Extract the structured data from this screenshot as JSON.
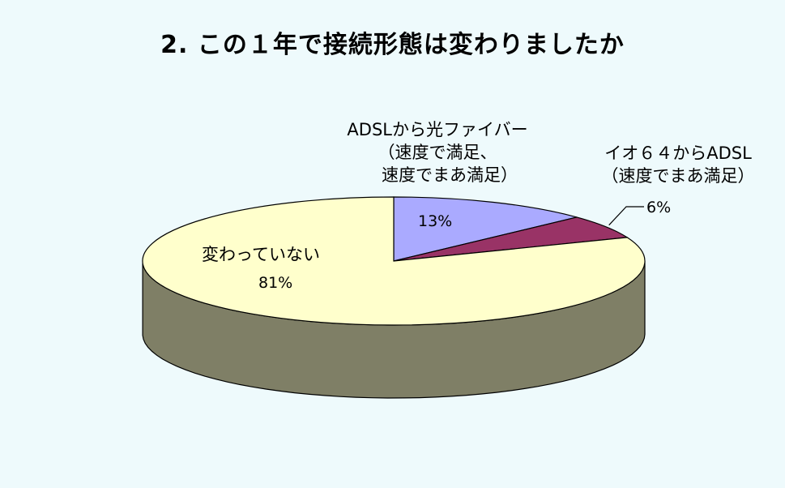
{
  "chart_data": {
    "type": "pie",
    "style": "3d",
    "title": "2. この１年で接続形態は変わりましたか",
    "legend": "none",
    "slices": [
      {
        "name_lines": [
          "ADSLから光ファイバー",
          "（速度で満足、",
          "速度でまあ満足）"
        ],
        "value": 13,
        "label": "13%",
        "color": "#aaaaff"
      },
      {
        "name_lines": [
          "イオ６４からADSL",
          "（速度でまあ満足）"
        ],
        "value": 6,
        "label": "6%",
        "color": "#993366"
      },
      {
        "name_lines": [
          "変わっていない"
        ],
        "value": 81,
        "label": "81%",
        "color": "#ffffcc"
      }
    ],
    "side_colors": {
      "#aaaaff": "#55557f",
      "#993366": "#4c1933",
      "#ffffcc": "#7f7f66"
    },
    "background": "#eefafc"
  }
}
